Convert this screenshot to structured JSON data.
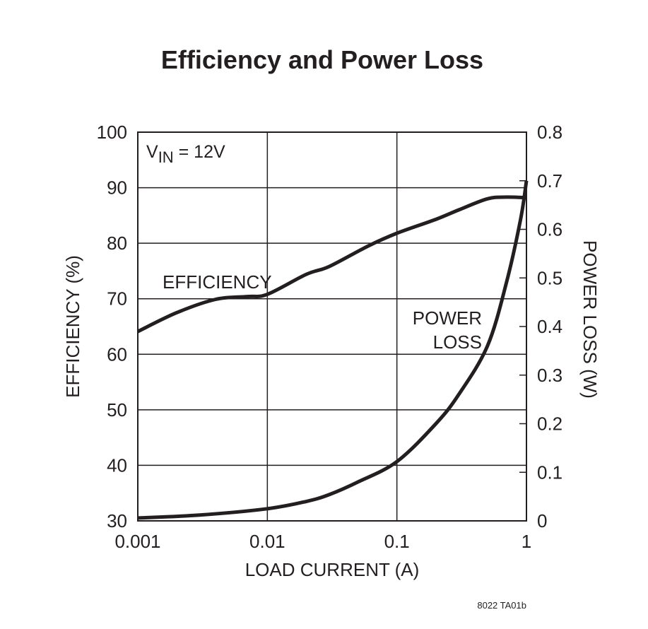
{
  "chart_data": {
    "type": "line",
    "title": "Efficiency and Power Loss",
    "xlabel": "LOAD CURRENT (A)",
    "ylabel": "EFFICIENCY (%)",
    "y2label": "POWER LOSS (W)",
    "xscale": "log",
    "xlim": [
      0.001,
      1
    ],
    "ylim": [
      30,
      100
    ],
    "y2lim": [
      0,
      0.8
    ],
    "xticks": [
      "0.001",
      "0.01",
      "0.1",
      "1"
    ],
    "yticks": [
      "30",
      "40",
      "50",
      "60",
      "70",
      "80",
      "90",
      "100"
    ],
    "y2ticks": [
      "0",
      "0.1",
      "0.2",
      "0.3",
      "0.4",
      "0.5",
      "0.6",
      "0.7",
      "0.8"
    ],
    "grid": true,
    "annotation": {
      "v": "V",
      "sub": "IN",
      "rest": " = 12V"
    },
    "series": [
      {
        "name": "EFFICIENCY",
        "axis": "left",
        "x": [
          0.001,
          0.002,
          0.004,
          0.007,
          0.01,
          0.02,
          0.03,
          0.06,
          0.1,
          0.2,
          0.3,
          0.5,
          0.7,
          1
        ],
        "y": [
          64.1,
          67.5,
          69.9,
          70.4,
          70.8,
          74.4,
          75.8,
          79.5,
          81.8,
          84.3,
          86.0,
          88.0,
          88.3,
          88.2
        ]
      },
      {
        "name": "POWER LOSS",
        "axis": "right",
        "x": [
          0.001,
          0.003,
          0.01,
          0.02,
          0.03,
          0.05,
          0.1,
          0.2,
          0.3,
          0.5,
          0.7,
          0.9,
          1
        ],
        "y": [
          0.006,
          0.012,
          0.025,
          0.04,
          0.054,
          0.08,
          0.122,
          0.2,
          0.26,
          0.36,
          0.49,
          0.62,
          0.7
        ]
      }
    ],
    "footer": "8022 TA01b"
  }
}
